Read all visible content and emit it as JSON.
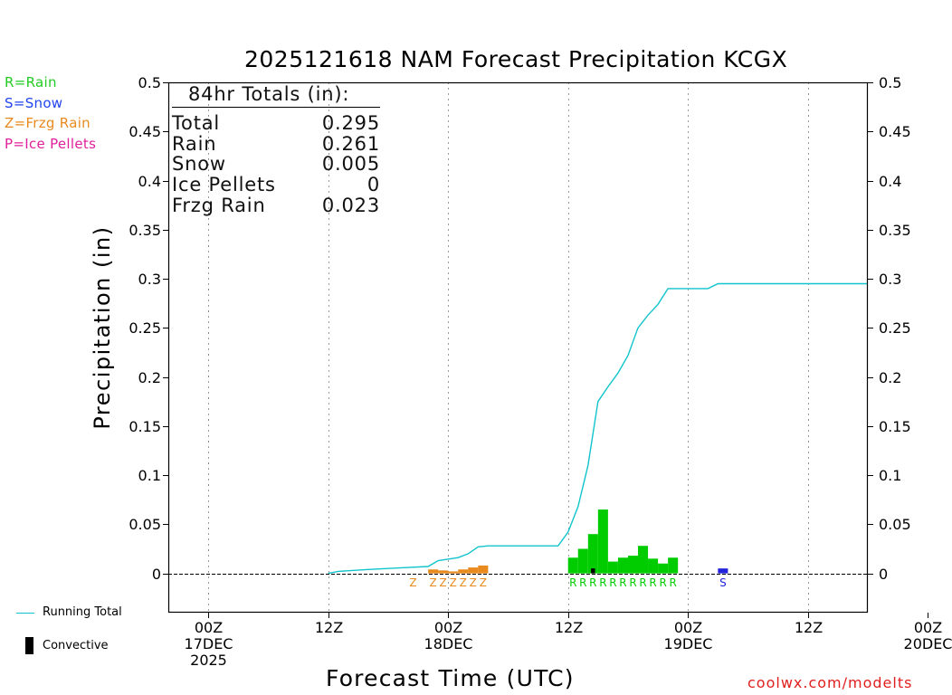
{
  "chart_data": {
    "type": "bar",
    "title": "2025121618 NAM Forecast Precipitation KCGX",
    "xlabel": "Forecast Time (UTC)",
    "ylabel": "Precipitation (in)",
    "ylim": [
      -0.04,
      0.5
    ],
    "y_ticks": [
      "0.5",
      "0.45",
      "0.4",
      "0.35",
      "0.3",
      "0.25",
      "0.2",
      "0.15",
      "0.1",
      "0.05",
      "0"
    ],
    "x_range_hours": [
      -4,
      66
    ],
    "x_ticks": [
      {
        "hour": 0,
        "line1": "00Z",
        "line2": "17DEC",
        "line3": "2025"
      },
      {
        "hour": 12,
        "line1": "12Z",
        "line2": "",
        "line3": ""
      },
      {
        "hour": 24,
        "line1": "00Z",
        "line2": "18DEC",
        "line3": ""
      },
      {
        "hour": 36,
        "line1": "12Z",
        "line2": "",
        "line3": ""
      },
      {
        "hour": 48,
        "line1": "00Z",
        "line2": "19DEC",
        "line3": ""
      },
      {
        "hour": 60,
        "line1": "12Z",
        "line2": "",
        "line3": ""
      },
      {
        "hour": 72,
        "line1": "00Z",
        "line2": "20DEC",
        "line3": ""
      }
    ],
    "series": [
      {
        "name": "Frzg Rain",
        "color": "#e88a1e",
        "bars": [
          {
            "hour": 22.5,
            "value": 0.004
          },
          {
            "hour": 23.5,
            "value": 0.003
          },
          {
            "hour": 24.5,
            "value": 0.002
          },
          {
            "hour": 25.5,
            "value": 0.004
          },
          {
            "hour": 26.5,
            "value": 0.006
          },
          {
            "hour": 27.5,
            "value": 0.008
          }
        ]
      },
      {
        "name": "Rain",
        "color": "#00cc00",
        "bars": [
          {
            "hour": 36.5,
            "value": 0.016
          },
          {
            "hour": 37.5,
            "value": 0.025
          },
          {
            "hour": 38.5,
            "value": 0.04
          },
          {
            "hour": 39.5,
            "value": 0.065
          },
          {
            "hour": 40.5,
            "value": 0.012
          },
          {
            "hour": 41.5,
            "value": 0.016
          },
          {
            "hour": 42.5,
            "value": 0.018
          },
          {
            "hour": 43.5,
            "value": 0.028
          },
          {
            "hour": 44.5,
            "value": 0.015
          },
          {
            "hour": 45.5,
            "value": 0.01
          },
          {
            "hour": 46.5,
            "value": 0.016
          }
        ]
      },
      {
        "name": "Snow",
        "color": "#2222dd",
        "bars": [
          {
            "hour": 51.5,
            "value": 0.005
          }
        ]
      },
      {
        "name": "Convective",
        "color": "#000000",
        "bars": [
          {
            "hour": 38.5,
            "value": 0.005
          }
        ]
      }
    ],
    "running_total": {
      "name": "Running Total",
      "color": "#11c4cc",
      "points": [
        [
          -5,
          0
        ],
        [
          12,
          0
        ],
        [
          13,
          0.002
        ],
        [
          16,
          0.004
        ],
        [
          20,
          0.006
        ],
        [
          22,
          0.007
        ],
        [
          23,
          0.013
        ],
        [
          25,
          0.016
        ],
        [
          26,
          0.02
        ],
        [
          27,
          0.027
        ],
        [
          28,
          0.028
        ],
        [
          35,
          0.028
        ],
        [
          36,
          0.042
        ],
        [
          37,
          0.068
        ],
        [
          38,
          0.11
        ],
        [
          39,
          0.175
        ],
        [
          40,
          0.19
        ],
        [
          41,
          0.204
        ],
        [
          42,
          0.222
        ],
        [
          43,
          0.25
        ],
        [
          44,
          0.263
        ],
        [
          45,
          0.274
        ],
        [
          46,
          0.29
        ],
        [
          49,
          0.29
        ],
        [
          50,
          0.29
        ],
        [
          51,
          0.295
        ],
        [
          66,
          0.295
        ]
      ]
    },
    "type_letters": [
      {
        "letters": "Z",
        "hours": [
          20.5
        ],
        "color": "#e88a1e"
      },
      {
        "letters": "ZZZZZZ",
        "hours": [
          22.5,
          23.5,
          24.5,
          25.5,
          26.5,
          27.5
        ],
        "color": "#e88a1e"
      },
      {
        "letters": "RRRRRRRRRRR",
        "hours": [
          36.5,
          37.5,
          38.5,
          39.5,
          40.5,
          41.5,
          42.5,
          43.5,
          44.5,
          45.5,
          46.5
        ],
        "color": "#00cc00"
      },
      {
        "letters": "S",
        "hours": [
          51.5
        ],
        "color": "#2222dd"
      }
    ]
  },
  "totals_box": {
    "header": "84hr Totals (in):",
    "rows": [
      {
        "label": "Total",
        "value": "0.295"
      },
      {
        "label": "Rain",
        "value": "0.261"
      },
      {
        "label": "Snow",
        "value": "0.005"
      },
      {
        "label": "Ice Pellets",
        "value": "0"
      },
      {
        "label": "Frzg Rain",
        "value": "0.023"
      }
    ]
  },
  "type_legend": [
    {
      "text": "R=Rain",
      "color": "#22cc22"
    },
    {
      "text": "S=Snow",
      "color": "#2244ee"
    },
    {
      "text": "Z=Frzg Rain",
      "color": "#e88a1e"
    },
    {
      "text": "P=Ice Pellets",
      "color": "#e0209a"
    }
  ],
  "bottom_legend": {
    "running_total": "Running Total",
    "convective": "Convective"
  },
  "watermark": "coolwx.com/modelts"
}
